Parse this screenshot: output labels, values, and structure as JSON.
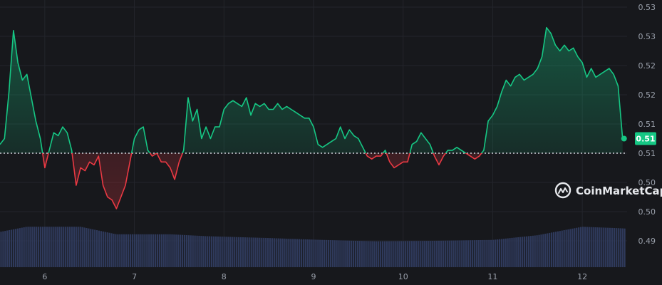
{
  "brand": {
    "name": "CoinMarketCap",
    "icon": "coinmarketcap-logo-icon"
  },
  "colors": {
    "background": "#17181c",
    "up": "#16c784",
    "down": "#ea3943",
    "volume": "#2f3a5c",
    "grid": "#23252b",
    "baseline": "#cfd3da"
  },
  "chart_data": {
    "type": "line",
    "price_range": [
      0.4985,
      0.5285
    ],
    "baseline": 0.5085,
    "last_price": 0.511,
    "last_price_label": "0.51",
    "y_tick_values": [
      0.4935,
      0.4985,
      0.5035,
      0.5085,
      0.5135,
      0.5185,
      0.5235,
      0.5285,
      0.5335
    ],
    "y_tick_labels": [
      "0.49",
      "0.50",
      "0.50",
      "0.51",
      "0.51",
      "0.52",
      "0.52",
      "0.53",
      "0.53"
    ],
    "x_tick_labels": [
      "6",
      "7",
      "8",
      "9",
      "10",
      "11",
      "12"
    ],
    "x_tick_positions": [
      0.5,
      1.5,
      2.5,
      3.5,
      4.5,
      5.5,
      6.5
    ],
    "x_range": [
      0,
      7
    ],
    "grid": true,
    "price_points": [
      [
        0.0,
        0.51
      ],
      [
        0.05,
        0.511
      ],
      [
        0.1,
        0.519
      ],
      [
        0.15,
        0.5295
      ],
      [
        0.2,
        0.524
      ],
      [
        0.25,
        0.521
      ],
      [
        0.3,
        0.522
      ],
      [
        0.35,
        0.518
      ],
      [
        0.4,
        0.514
      ],
      [
        0.45,
        0.511
      ],
      [
        0.5,
        0.506
      ],
      [
        0.55,
        0.509
      ],
      [
        0.6,
        0.512
      ],
      [
        0.65,
        0.5115
      ],
      [
        0.7,
        0.513
      ],
      [
        0.75,
        0.512
      ],
      [
        0.8,
        0.509
      ],
      [
        0.85,
        0.503
      ],
      [
        0.9,
        0.506
      ],
      [
        0.95,
        0.5055
      ],
      [
        1.0,
        0.507
      ],
      [
        1.05,
        0.5065
      ],
      [
        1.1,
        0.508
      ],
      [
        1.15,
        0.503
      ],
      [
        1.2,
        0.501
      ],
      [
        1.25,
        0.5005
      ],
      [
        1.3,
        0.499
      ],
      [
        1.35,
        0.501
      ],
      [
        1.4,
        0.503
      ],
      [
        1.45,
        0.507
      ],
      [
        1.5,
        0.511
      ],
      [
        1.55,
        0.5125
      ],
      [
        1.6,
        0.513
      ],
      [
        1.65,
        0.509
      ],
      [
        1.7,
        0.508
      ],
      [
        1.75,
        0.5085
      ],
      [
        1.8,
        0.507
      ],
      [
        1.85,
        0.507
      ],
      [
        1.9,
        0.506
      ],
      [
        1.95,
        0.504
      ],
      [
        2.0,
        0.507
      ],
      [
        2.05,
        0.509
      ],
      [
        2.1,
        0.518
      ],
      [
        2.15,
        0.514
      ],
      [
        2.2,
        0.516
      ],
      [
        2.25,
        0.511
      ],
      [
        2.3,
        0.513
      ],
      [
        2.35,
        0.511
      ],
      [
        2.4,
        0.513
      ],
      [
        2.45,
        0.513
      ],
      [
        2.5,
        0.516
      ],
      [
        2.55,
        0.517
      ],
      [
        2.6,
        0.5175
      ],
      [
        2.65,
        0.517
      ],
      [
        2.7,
        0.5165
      ],
      [
        2.75,
        0.518
      ],
      [
        2.8,
        0.515
      ],
      [
        2.85,
        0.517
      ],
      [
        2.9,
        0.5165
      ],
      [
        2.95,
        0.517
      ],
      [
        3.0,
        0.516
      ],
      [
        3.05,
        0.516
      ],
      [
        3.1,
        0.517
      ],
      [
        3.15,
        0.516
      ],
      [
        3.2,
        0.5165
      ],
      [
        3.25,
        0.516
      ],
      [
        3.3,
        0.5155
      ],
      [
        3.35,
        0.515
      ],
      [
        3.4,
        0.5145
      ],
      [
        3.45,
        0.5145
      ],
      [
        3.5,
        0.513
      ],
      [
        3.55,
        0.51
      ],
      [
        3.6,
        0.5095
      ],
      [
        3.65,
        0.51
      ],
      [
        3.7,
        0.5105
      ],
      [
        3.75,
        0.511
      ],
      [
        3.8,
        0.513
      ],
      [
        3.85,
        0.511
      ],
      [
        3.9,
        0.5125
      ],
      [
        3.95,
        0.5115
      ],
      [
        4.0,
        0.511
      ],
      [
        4.05,
        0.5095
      ],
      [
        4.1,
        0.508
      ],
      [
        4.15,
        0.5075
      ],
      [
        4.2,
        0.508
      ],
      [
        4.25,
        0.508
      ],
      [
        4.3,
        0.509
      ],
      [
        4.35,
        0.507
      ],
      [
        4.4,
        0.506
      ],
      [
        4.45,
        0.5065
      ],
      [
        4.5,
        0.507
      ],
      [
        4.55,
        0.507
      ],
      [
        4.6,
        0.51
      ],
      [
        4.65,
        0.5105
      ],
      [
        4.7,
        0.512
      ],
      [
        4.75,
        0.511
      ],
      [
        4.8,
        0.51
      ],
      [
        4.85,
        0.508
      ],
      [
        4.9,
        0.5065
      ],
      [
        4.95,
        0.508
      ],
      [
        5.0,
        0.509
      ],
      [
        5.05,
        0.509
      ],
      [
        5.1,
        0.5095
      ],
      [
        5.15,
        0.509
      ],
      [
        5.2,
        0.5085
      ],
      [
        5.25,
        0.508
      ],
      [
        5.3,
        0.5075
      ],
      [
        5.35,
        0.508
      ],
      [
        5.4,
        0.509
      ],
      [
        5.45,
        0.514
      ],
      [
        5.5,
        0.515
      ],
      [
        5.55,
        0.5165
      ],
      [
        5.6,
        0.519
      ],
      [
        5.65,
        0.521
      ],
      [
        5.7,
        0.52
      ],
      [
        5.75,
        0.5215
      ],
      [
        5.8,
        0.522
      ],
      [
        5.85,
        0.521
      ],
      [
        5.9,
        0.5215
      ],
      [
        5.95,
        0.522
      ],
      [
        6.0,
        0.523
      ],
      [
        6.05,
        0.525
      ],
      [
        6.1,
        0.53
      ],
      [
        6.15,
        0.529
      ],
      [
        6.2,
        0.527
      ],
      [
        6.25,
        0.526
      ],
      [
        6.3,
        0.527
      ],
      [
        6.35,
        0.526
      ],
      [
        6.4,
        0.5265
      ],
      [
        6.45,
        0.525
      ],
      [
        6.5,
        0.524
      ],
      [
        6.55,
        0.5215
      ],
      [
        6.6,
        0.523
      ],
      [
        6.65,
        0.5215
      ],
      [
        6.7,
        0.522
      ],
      [
        6.75,
        0.5225
      ],
      [
        6.8,
        0.523
      ],
      [
        6.85,
        0.522
      ],
      [
        6.9,
        0.52
      ],
      [
        6.95,
        0.511
      ]
    ],
    "volume_profile": [
      [
        0.0,
        0.75
      ],
      [
        0.3,
        0.86
      ],
      [
        0.9,
        0.86
      ],
      [
        1.1,
        0.78
      ],
      [
        1.3,
        0.7
      ],
      [
        1.9,
        0.7
      ],
      [
        2.3,
        0.66
      ],
      [
        3.0,
        0.62
      ],
      [
        3.6,
        0.58
      ],
      [
        4.2,
        0.55
      ],
      [
        4.8,
        0.56
      ],
      [
        5.5,
        0.58
      ],
      [
        6.0,
        0.68
      ],
      [
        6.5,
        0.86
      ],
      [
        6.9,
        0.83
      ],
      [
        7.0,
        0.82
      ]
    ]
  }
}
